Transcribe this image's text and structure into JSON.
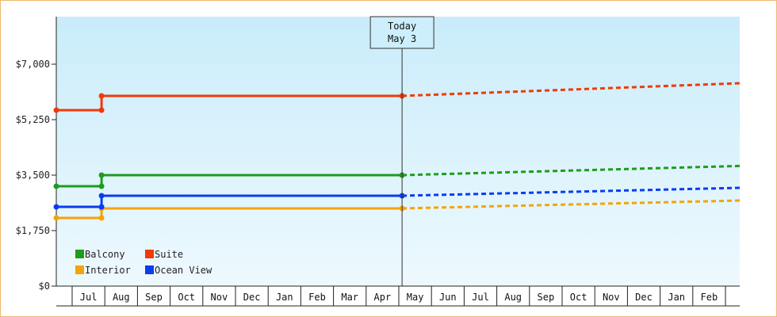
{
  "chart_data": {
    "type": "line",
    "title": "",
    "xlabel": "",
    "ylabel": "",
    "ylim": [
      0,
      8500
    ],
    "yticks": [
      0,
      1750,
      3500,
      5250,
      7000
    ],
    "ytick_labels": [
      "$0",
      "$1,750",
      "$3,500",
      "$5,250",
      "$7,000"
    ],
    "month_labels": [
      "Jul",
      "Aug",
      "Sep",
      "Oct",
      "Nov",
      "Dec",
      "Jan",
      "Feb",
      "Mar",
      "Apr",
      "May",
      "Jun",
      "Jul",
      "Aug",
      "Sep",
      "Oct",
      "Nov",
      "Dec",
      "Jan",
      "Feb"
    ],
    "today": {
      "line1": "Today",
      "line2": "May 3",
      "x": 10.1
    },
    "legend": {
      "placement": "bottom-left"
    },
    "grid": false,
    "series": [
      {
        "name": "Balcony",
        "color": "#1e9c1e",
        "points": [
          [
            -0.5,
            3150
          ],
          [
            0.9,
            3150
          ],
          [
            0.9,
            3500
          ],
          [
            10.1,
            3500
          ]
        ],
        "forecast": [
          [
            10.1,
            3500
          ],
          [
            20.5,
            3790
          ]
        ]
      },
      {
        "name": "Suite",
        "color": "#f03a0a",
        "points": [
          [
            -0.5,
            5550
          ],
          [
            0.9,
            5550
          ],
          [
            0.9,
            6000
          ],
          [
            10.1,
            6000
          ]
        ],
        "forecast": [
          [
            10.1,
            6000
          ],
          [
            20.5,
            6400
          ]
        ]
      },
      {
        "name": "Interior",
        "color": "#f5a30a",
        "points": [
          [
            -0.5,
            2150
          ],
          [
            0.9,
            2150
          ],
          [
            0.9,
            2450
          ],
          [
            10.1,
            2450
          ]
        ],
        "forecast": [
          [
            10.1,
            2450
          ],
          [
            20.5,
            2700
          ]
        ]
      },
      {
        "name": "Ocean View",
        "color": "#0a3cf0",
        "points": [
          [
            -0.5,
            2500
          ],
          [
            0.9,
            2500
          ],
          [
            0.9,
            2850
          ],
          [
            10.1,
            2850
          ]
        ],
        "forecast": [
          [
            10.1,
            2850
          ],
          [
            20.5,
            3100
          ]
        ]
      }
    ]
  }
}
